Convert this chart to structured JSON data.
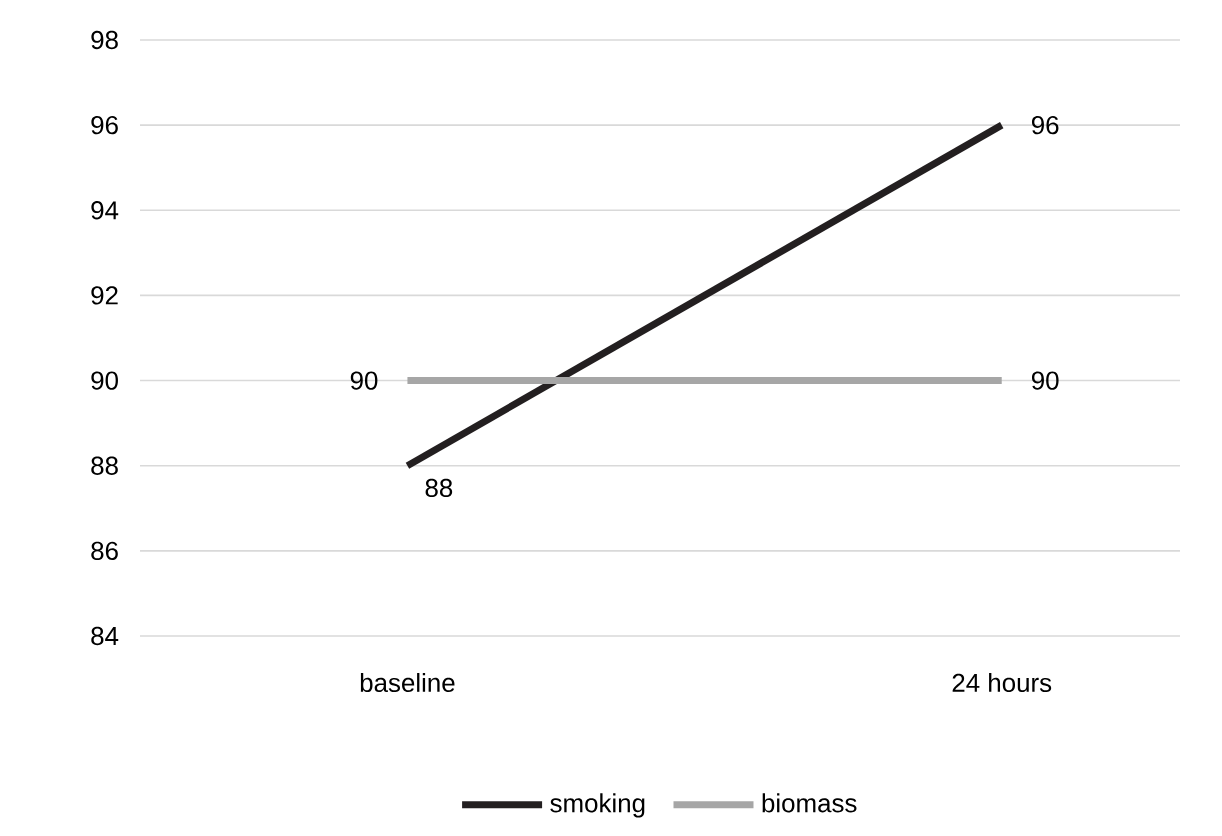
{
  "chart_data": {
    "type": "line",
    "categories": [
      "baseline",
      "24 hours"
    ],
    "series": [
      {
        "name": "smoking",
        "color": "#231f20",
        "values": [
          88,
          96
        ]
      },
      {
        "name": "biomass",
        "color": "#a6a6a6",
        "values": [
          90,
          90
        ]
      }
    ],
    "ylim": [
      84,
      98
    ],
    "yticks": [
      84,
      86,
      88,
      90,
      92,
      94,
      96,
      98
    ],
    "grid": "y",
    "legend": "bottom",
    "data_labels": true,
    "line_style": "solid"
  }
}
